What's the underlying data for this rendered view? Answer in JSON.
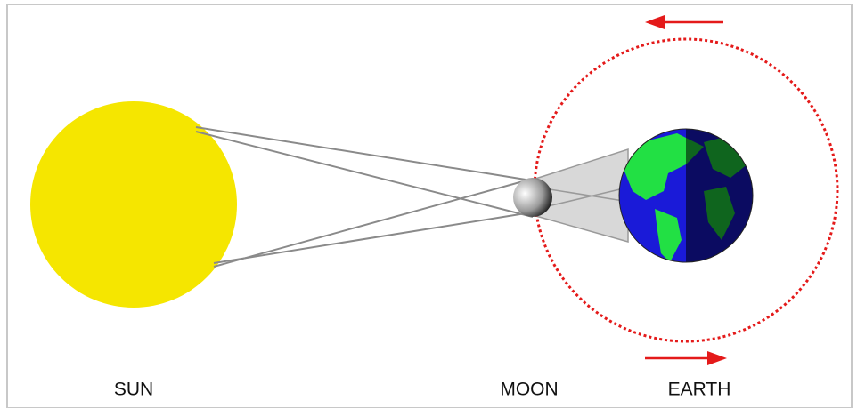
{
  "labels": {
    "sun": "SUN",
    "moon": "MOON",
    "earth": "EARTH"
  }
}
